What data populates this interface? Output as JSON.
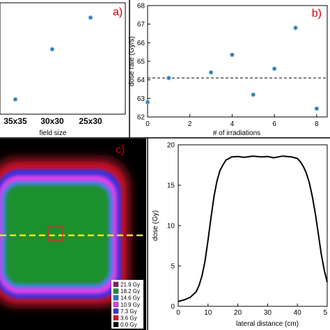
{
  "chart_data": [
    {
      "type": "scatter",
      "panel": "a)",
      "categories": [
        "35x35",
        "30x30",
        "25x30"
      ],
      "values": [
        62.8,
        65.5,
        67.2
      ],
      "xlabel": "field size",
      "ylabel": "",
      "ylim": [
        62,
        68
      ],
      "marker_color": "#1f77b4"
    },
    {
      "type": "scatter",
      "panel": "b)",
      "x": [
        0,
        1,
        3,
        4,
        5,
        6,
        7,
        8
      ],
      "y": [
        62.8,
        64.1,
        64.4,
        65.35,
        63.2,
        64.6,
        66.8,
        62.45
      ],
      "reference_line": 64.1,
      "xlabel": "# of irradiations",
      "ylabel": "dose rate (Gy/s)",
      "xlim": [
        0,
        8.5
      ],
      "ylim": [
        62,
        68
      ],
      "xticks": [
        "0",
        "2",
        "4",
        "6",
        "8"
      ],
      "yticks": [
        "62",
        "63",
        "64",
        "65",
        "66",
        "67",
        "68"
      ],
      "grid": false,
      "marker_color": "#1f77b4"
    },
    {
      "type": "heatmap",
      "panel": "c)",
      "legend": [
        {
          "label": "21.9 Gy",
          "color": "#7a1f6e"
        },
        {
          "label": "18.2 Gy",
          "color": "#1e8f2e"
        },
        {
          "label": "14.6 Gy",
          "color": "#2e6fdc"
        },
        {
          "label": "10.9 Gy",
          "color": "#e040e8"
        },
        {
          "label": "7.3 Gy",
          "color": "#3a30d8"
        },
        {
          "label": "3.6 Gy",
          "color": "#d8102a"
        },
        {
          "label": "0.0 Gy",
          "color": "#000000"
        }
      ],
      "profile_line_color": "#f2e80f",
      "roi_color": "#c0392b"
    },
    {
      "type": "line",
      "x": [
        0,
        2,
        4,
        6,
        7,
        8,
        9,
        10,
        11,
        12,
        13,
        14,
        15,
        16,
        18,
        20,
        22,
        25,
        28,
        30,
        32,
        35,
        38,
        40,
        41,
        42,
        43,
        44,
        45,
        46,
        47,
        48,
        49,
        50
      ],
      "y": [
        0.6,
        0.8,
        1.1,
        1.8,
        2.6,
        3.8,
        5.6,
        8.2,
        11.0,
        13.6,
        15.5,
        16.8,
        17.5,
        18.1,
        18.5,
        18.55,
        18.45,
        18.6,
        18.5,
        18.55,
        18.4,
        18.6,
        18.5,
        18.3,
        17.9,
        17.3,
        16.5,
        15.3,
        13.6,
        11.5,
        9.0,
        6.5,
        4.5,
        3.0
      ],
      "xlabel": "lateral distance (cm)",
      "ylabel": "dose (Gy)",
      "xlim": [
        0,
        50
      ],
      "ylim": [
        0,
        20
      ],
      "xticks": [
        "0",
        "10",
        "20",
        "30",
        "40",
        "5"
      ],
      "yticks": [
        "0",
        "5",
        "10",
        "15",
        "20"
      ],
      "line_color": "#000000"
    }
  ]
}
